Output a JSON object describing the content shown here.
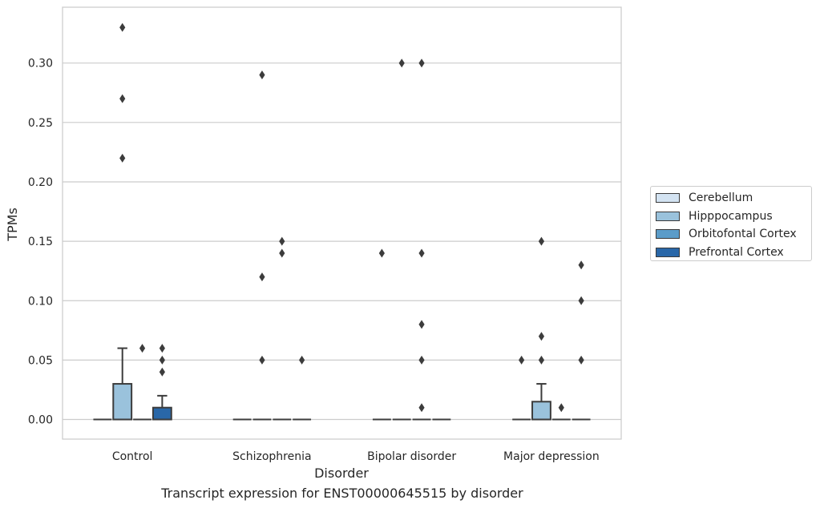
{
  "caption": "Transcript expression for ENST00000645515 by disorder",
  "chart_data": {
    "type": "box",
    "xlabel": "Disorder",
    "ylabel": "TPMs",
    "ylim": [
      -0.0165,
      0.347
    ],
    "yticks": [
      0.0,
      0.05,
      0.1,
      0.15,
      0.2,
      0.25,
      0.3
    ],
    "ytick_labels": [
      "0.00",
      "0.05",
      "0.10",
      "0.15",
      "0.20",
      "0.25",
      "0.30"
    ],
    "grid": "horizontal",
    "legend_position": "right",
    "categories": [
      "Control",
      "Schizophrenia",
      "Bipolar disorder",
      "Major depression"
    ],
    "series": [
      {
        "name": "Cerebellum",
        "color": "#d3e3f2",
        "boxes": [
          {
            "q1": 0,
            "median": 0,
            "q3": 0,
            "whisker_low": 0,
            "whisker_high": 0,
            "outliers": []
          },
          {
            "q1": 0,
            "median": 0,
            "q3": 0,
            "whisker_low": 0,
            "whisker_high": 0,
            "outliers": []
          },
          {
            "q1": 0,
            "median": 0,
            "q3": 0,
            "whisker_low": 0,
            "whisker_high": 0,
            "outliers": [
              0.14
            ]
          },
          {
            "q1": 0,
            "median": 0,
            "q3": 0,
            "whisker_low": 0,
            "whisker_high": 0,
            "outliers": [
              0.05
            ]
          }
        ]
      },
      {
        "name": "Hipppocampus",
        "color": "#9ac2dc",
        "boxes": [
          {
            "q1": 0,
            "median": 0,
            "q3": 0.03,
            "whisker_low": 0,
            "whisker_high": 0.06,
            "outliers": [
              0.22,
              0.27,
              0.33
            ]
          },
          {
            "q1": 0,
            "median": 0,
            "q3": 0,
            "whisker_low": 0,
            "whisker_high": 0,
            "outliers": [
              0.05,
              0.12,
              0.29
            ]
          },
          {
            "q1": 0,
            "median": 0,
            "q3": 0,
            "whisker_low": 0,
            "whisker_high": 0,
            "outliers": [
              0.3
            ]
          },
          {
            "q1": 0,
            "median": 0,
            "q3": 0.015,
            "whisker_low": 0,
            "whisker_high": 0.03,
            "outliers": [
              0.05,
              0.07,
              0.15
            ]
          }
        ]
      },
      {
        "name": "Orbitofontal Cortex",
        "color": "#5b9cc9",
        "boxes": [
          {
            "q1": 0,
            "median": 0,
            "q3": 0,
            "whisker_low": 0,
            "whisker_high": 0,
            "outliers": [
              0.06
            ]
          },
          {
            "q1": 0,
            "median": 0,
            "q3": 0,
            "whisker_low": 0,
            "whisker_high": 0,
            "outliers": [
              0.14,
              0.15
            ]
          },
          {
            "q1": 0,
            "median": 0,
            "q3": 0,
            "whisker_low": 0,
            "whisker_high": 0,
            "outliers": [
              0.01,
              0.05,
              0.08,
              0.14,
              0.3
            ]
          },
          {
            "q1": 0,
            "median": 0,
            "q3": 0,
            "whisker_low": 0,
            "whisker_high": 0,
            "outliers": [
              0.01
            ]
          }
        ]
      },
      {
        "name": "Prefrontal Cortex",
        "color": "#2967a8",
        "boxes": [
          {
            "q1": 0,
            "median": 0,
            "q3": 0.01,
            "whisker_low": 0,
            "whisker_high": 0.02,
            "outliers": [
              0.04,
              0.05,
              0.06
            ]
          },
          {
            "q1": 0,
            "median": 0,
            "q3": 0,
            "whisker_low": 0,
            "whisker_high": 0,
            "outliers": [
              0.05
            ]
          },
          {
            "q1": 0,
            "median": 0,
            "q3": 0,
            "whisker_low": 0,
            "whisker_high": 0,
            "outliers": []
          },
          {
            "q1": 0,
            "median": 0,
            "q3": 0,
            "whisker_low": 0,
            "whisker_high": 0,
            "outliers": [
              0.05,
              0.1,
              0.13
            ]
          }
        ]
      }
    ]
  }
}
